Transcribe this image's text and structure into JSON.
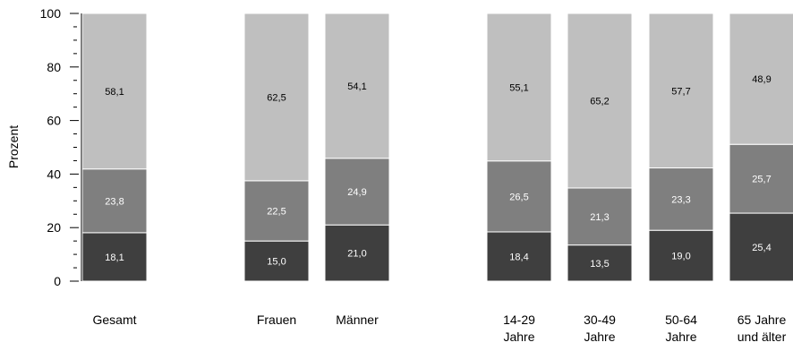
{
  "chart_data": {
    "type": "bar",
    "stacked": true,
    "ylabel": "Prozent",
    "xlabel": "",
    "ylim": [
      0,
      100
    ],
    "yticks": [
      0,
      20,
      40,
      60,
      80,
      100
    ],
    "grid": false,
    "categories": [
      [
        "Gesamt"
      ],
      [
        "Frauen"
      ],
      [
        "Männer"
      ],
      [
        "14-29",
        "Jahre"
      ],
      [
        "30-49",
        "Jahre"
      ],
      [
        "50-64",
        "Jahre"
      ],
      [
        "65 Jahre",
        "und älter"
      ]
    ],
    "series": [
      {
        "color": "#3f3f3f",
        "label_color": "#ffffff",
        "values": [
          18.1,
          15.0,
          21.0,
          18.4,
          13.5,
          19.0,
          25.4
        ],
        "labels": [
          "18,1",
          "15,0",
          "21,0",
          "18,4",
          "13,5",
          "19,0",
          "25,4"
        ]
      },
      {
        "color": "#7f7f7f",
        "label_color": "#ffffff",
        "values": [
          23.8,
          22.5,
          24.9,
          26.5,
          21.3,
          23.3,
          25.7
        ],
        "labels": [
          "23,8",
          "22,5",
          "24,9",
          "26,5",
          "21,3",
          "23,3",
          "25,7"
        ]
      },
      {
        "color": "#bfbfbf",
        "label_color": "#000000",
        "values": [
          58.1,
          62.5,
          54.1,
          55.1,
          65.2,
          57.7,
          48.9
        ],
        "labels": [
          "58,1",
          "62,5",
          "54,1",
          "55,1",
          "65,2",
          "57,7",
          "48,9"
        ]
      }
    ]
  }
}
